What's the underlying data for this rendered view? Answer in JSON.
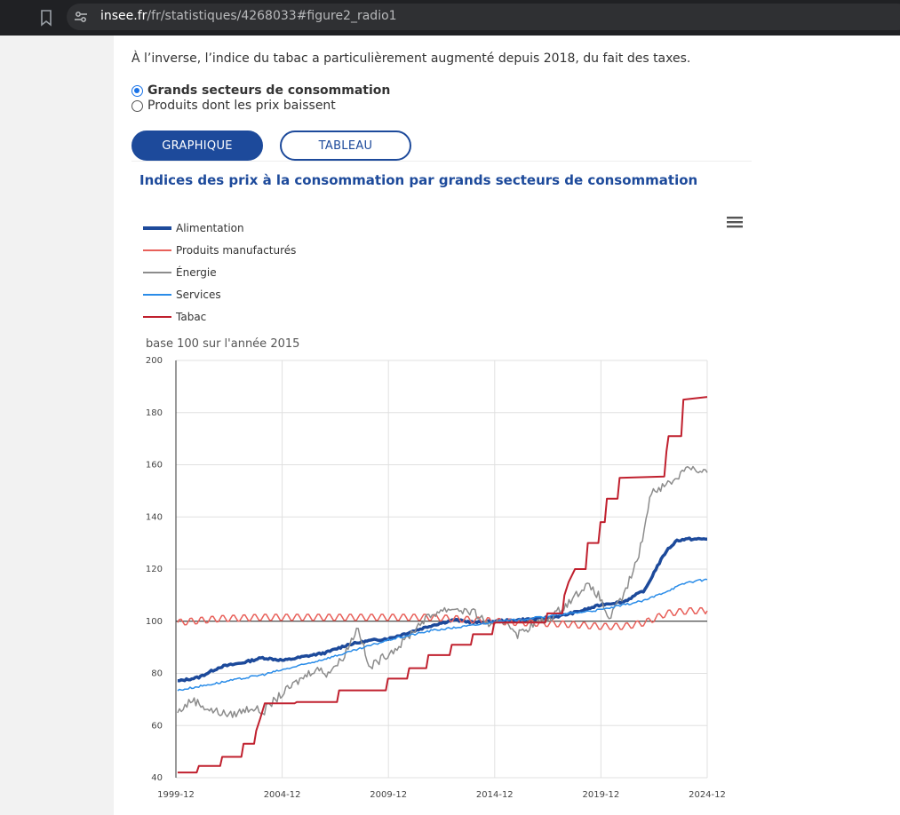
{
  "browser": {
    "url_host": "insee.fr",
    "url_path": "/fr/statistiques/4268033#figure2_radio1"
  },
  "page": {
    "intro_text": "À l’inverse, l’indice du tabac a particulièrement augmenté depuis 2018, du fait des taxes.",
    "radio_options": [
      {
        "label": "Grands secteurs de consommation",
        "checked": true
      },
      {
        "label": "Produits dont les prix baissent",
        "checked": false
      }
    ],
    "buttons": {
      "graph": "Graphique",
      "table": "Tableau"
    }
  },
  "chart": {
    "title": "Indices des prix à la consommation par grands secteurs de consommation",
    "unit_note": "base 100 sur l'année 2015"
  },
  "chart_data": {
    "type": "line",
    "title": "Indices des prix à la consommation par grands secteurs de consommation",
    "subtitle": "base 100 sur l'année 2015",
    "x_tick_labels": [
      "1999-12",
      "2004-12",
      "2009-12",
      "2014-12",
      "2019-12",
      "2024-12"
    ],
    "x_range": [
      1999.92,
      2024.92
    ],
    "y_ticks": [
      40,
      60,
      80,
      100,
      120,
      140,
      160,
      180,
      200
    ],
    "ylim": [
      40,
      200
    ],
    "reference_line": 100,
    "grid": true,
    "legend_position": "top-left",
    "series": [
      {
        "name": "Alimentation",
        "color": "#1d4a9b",
        "width": 3.5,
        "points": [
          [
            2000,
            77
          ],
          [
            2001,
            78.5
          ],
          [
            2002,
            82.5
          ],
          [
            2003,
            84
          ],
          [
            2004,
            86
          ],
          [
            2005,
            85
          ],
          [
            2006,
            86.5
          ],
          [
            2007,
            88
          ],
          [
            2008,
            91
          ],
          [
            2009,
            92.5
          ],
          [
            2010,
            93.5
          ],
          [
            2011,
            96
          ],
          [
            2012,
            98.5
          ],
          [
            2013,
            100.5
          ],
          [
            2014,
            99.5
          ],
          [
            2015,
            100
          ],
          [
            2016,
            100.5
          ],
          [
            2017,
            101
          ],
          [
            2018,
            102
          ],
          [
            2019,
            104
          ],
          [
            2020,
            106.5
          ],
          [
            2021,
            107.5
          ],
          [
            2022,
            112
          ],
          [
            2022.5,
            120
          ],
          [
            2023,
            127
          ],
          [
            2023.5,
            131
          ],
          [
            2024,
            131.5
          ],
          [
            2024.92,
            131.5
          ]
        ]
      },
      {
        "name": "Produits manufacturés",
        "color": "#e8605a",
        "width": 1.5,
        "points": [
          [
            2000,
            99.5
          ],
          [
            2002,
            101
          ],
          [
            2004,
            101.5
          ],
          [
            2006,
            101.5
          ],
          [
            2008,
            101.5
          ],
          [
            2010,
            101.5
          ],
          [
            2012,
            101.5
          ],
          [
            2014,
            100.5
          ],
          [
            2015,
            100
          ],
          [
            2016,
            99.5
          ],
          [
            2018,
            99
          ],
          [
            2019,
            98.5
          ],
          [
            2020,
            98
          ],
          [
            2021,
            98
          ],
          [
            2022,
            99.5
          ],
          [
            2023,
            103
          ],
          [
            2024,
            104
          ],
          [
            2024.92,
            104
          ]
        ]
      },
      {
        "name": "Énergie",
        "color": "#8c8c8c",
        "width": 1.5,
        "points": [
          [
            2000,
            65
          ],
          [
            2000.7,
            70
          ],
          [
            2001.5,
            66
          ],
          [
            2002.5,
            64
          ],
          [
            2003.5,
            67
          ],
          [
            2004,
            65
          ],
          [
            2004.6,
            70
          ],
          [
            2005.5,
            76
          ],
          [
            2006.5,
            82
          ],
          [
            2007,
            80
          ],
          [
            2007.7,
            85
          ],
          [
            2008.5,
            98
          ],
          [
            2009,
            82
          ],
          [
            2009.8,
            87
          ],
          [
            2010.5,
            91
          ],
          [
            2011.5,
            100
          ],
          [
            2012.3,
            104
          ],
          [
            2013,
            105
          ],
          [
            2014,
            103
          ],
          [
            2014.8,
            98
          ],
          [
            2015.5,
            100
          ],
          [
            2016,
            95
          ],
          [
            2016.8,
            99
          ],
          [
            2017.5,
            101
          ],
          [
            2018.5,
            108
          ],
          [
            2019.2,
            114
          ],
          [
            2019.8,
            110
          ],
          [
            2020.3,
            101
          ],
          [
            2021,
            110
          ],
          [
            2021.7,
            125
          ],
          [
            2022.3,
            150
          ],
          [
            2022.9,
            152
          ],
          [
            2023.5,
            155
          ],
          [
            2024,
            160
          ],
          [
            2024.5,
            157
          ],
          [
            2024.92,
            157
          ]
        ]
      },
      {
        "name": "Services",
        "color": "#2a8ce8",
        "width": 1.5,
        "points": [
          [
            2000,
            73.5
          ],
          [
            2002,
            76.5
          ],
          [
            2004,
            79.5
          ],
          [
            2006,
            83.5
          ],
          [
            2008,
            88
          ],
          [
            2010,
            93
          ],
          [
            2012,
            96.5
          ],
          [
            2014,
            98.5
          ],
          [
            2015,
            100
          ],
          [
            2016,
            100.5
          ],
          [
            2018,
            102.5
          ],
          [
            2020,
            104.5
          ],
          [
            2022,
            108
          ],
          [
            2023,
            111.5
          ],
          [
            2024,
            115
          ],
          [
            2024.92,
            116
          ]
        ]
      },
      {
        "name": "Tabac",
        "color": "#c0202e",
        "width": 2,
        "step": true,
        "points": [
          [
            2000,
            42
          ],
          [
            2000.9,
            42
          ],
          [
            2001,
            44.5
          ],
          [
            2002,
            44.5
          ],
          [
            2002.1,
            48
          ],
          [
            2003,
            48
          ],
          [
            2003.1,
            53
          ],
          [
            2003.6,
            53
          ],
          [
            2003.7,
            58
          ],
          [
            2003.9,
            63
          ],
          [
            2004.1,
            68.5
          ],
          [
            2005.5,
            68.5
          ],
          [
            2005.6,
            69
          ],
          [
            2007.5,
            69
          ],
          [
            2007.6,
            73.5
          ],
          [
            2009.8,
            73.5
          ],
          [
            2009.9,
            78
          ],
          [
            2010.8,
            78
          ],
          [
            2010.9,
            82
          ],
          [
            2011.7,
            82
          ],
          [
            2011.8,
            87
          ],
          [
            2012.8,
            87
          ],
          [
            2012.9,
            91
          ],
          [
            2013.8,
            91
          ],
          [
            2013.9,
            95
          ],
          [
            2014.8,
            95
          ],
          [
            2014.9,
            99.5
          ],
          [
            2017.3,
            99.5
          ],
          [
            2017.4,
            103
          ],
          [
            2018.1,
            103
          ],
          [
            2018.2,
            110
          ],
          [
            2018.4,
            115
          ],
          [
            2018.7,
            120
          ],
          [
            2019.2,
            120
          ],
          [
            2019.3,
            130
          ],
          [
            2019.8,
            130
          ],
          [
            2019.9,
            138
          ],
          [
            2020.1,
            138
          ],
          [
            2020.2,
            147
          ],
          [
            2020.7,
            147
          ],
          [
            2020.8,
            155
          ],
          [
            2022.9,
            155.5
          ],
          [
            2023,
            165
          ],
          [
            2023.1,
            171
          ],
          [
            2023.7,
            171
          ],
          [
            2023.8,
            185
          ],
          [
            2024.92,
            186
          ]
        ]
      }
    ]
  }
}
